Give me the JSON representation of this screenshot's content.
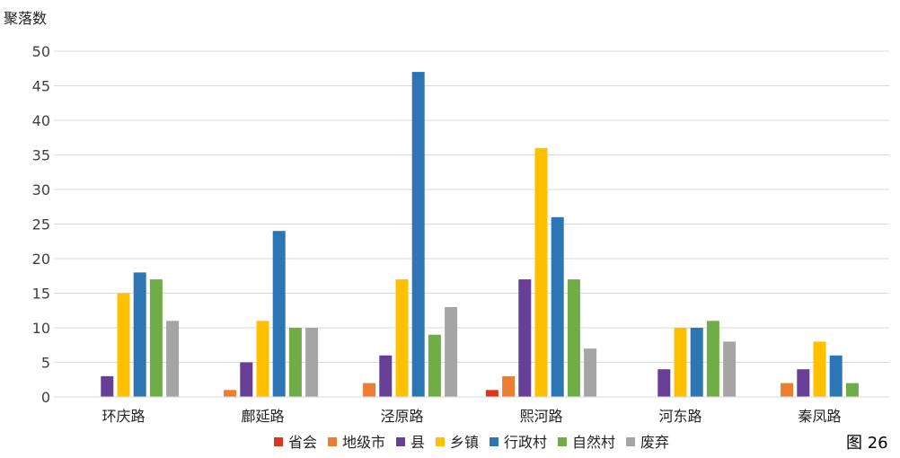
{
  "chart_data": {
    "type": "bar",
    "ylabel": "聚落数",
    "ylim": [
      0,
      50
    ],
    "yticks": [
      0,
      5,
      10,
      15,
      20,
      25,
      30,
      35,
      40,
      45,
      50
    ],
    "grid": true,
    "legend_position": "bottom",
    "categories": [
      "环庆路",
      "鄜延路",
      "泾原路",
      "熙河路",
      "河东路",
      "秦凤路"
    ],
    "series": [
      {
        "name": "省会",
        "color": "#d9371e",
        "values": [
          0,
          0,
          0,
          1,
          0,
          0
        ]
      },
      {
        "name": "地级市",
        "color": "#ed7d31",
        "values": [
          0,
          1,
          2,
          3,
          0,
          2
        ]
      },
      {
        "name": "县",
        "color": "#673f97",
        "values": [
          3,
          5,
          6,
          17,
          4,
          4
        ]
      },
      {
        "name": "乡镇",
        "color": "#ffc000",
        "values": [
          15,
          11,
          17,
          36,
          10,
          8
        ]
      },
      {
        "name": "行政村",
        "color": "#2e75b6",
        "values": [
          18,
          24,
          47,
          26,
          10,
          6
        ]
      },
      {
        "name": "自然村",
        "color": "#70ad47",
        "values": [
          17,
          10,
          9,
          17,
          11,
          2
        ]
      },
      {
        "name": "废弃",
        "color": "#a5a5a5",
        "values": [
          11,
          10,
          13,
          7,
          8,
          0
        ]
      }
    ]
  },
  "caption": "图 26"
}
